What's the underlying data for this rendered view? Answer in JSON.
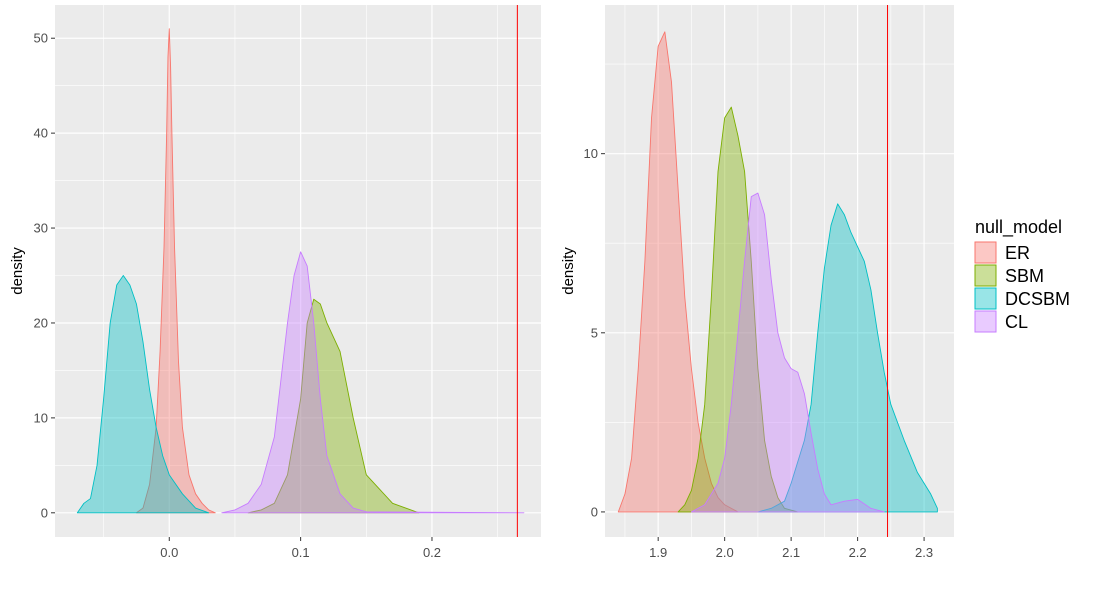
{
  "legend": {
    "title": "null_model",
    "entries": [
      {
        "name": "ER",
        "color": "#F8766D"
      },
      {
        "name": "SBM",
        "color": "#7CAE00"
      },
      {
        "name": "DCSBM",
        "color": "#00BFC4"
      },
      {
        "name": "CL",
        "color": "#C77CFF"
      }
    ]
  },
  "chart_data": [
    {
      "type": "area",
      "ylabel": "density",
      "xlabel": "",
      "xlim": [
        -0.087,
        0.283
      ],
      "ylim": [
        -2.55,
        53.5
      ],
      "xticks": [
        0.0,
        0.1,
        0.2
      ],
      "xtick_labels": [
        "0.0",
        "0.1",
        "0.2"
      ],
      "yticks": [
        0,
        10,
        20,
        30,
        40,
        50
      ],
      "ytick_labels": [
        "0",
        "10",
        "20",
        "30",
        "40",
        "50"
      ],
      "grid": true,
      "vline": {
        "x": 0.265,
        "color": "#ff0000"
      },
      "series": [
        {
          "name": "ER",
          "color": "#F8766D",
          "x": [
            -0.025,
            -0.02,
            -0.015,
            -0.01,
            -0.007,
            -0.004,
            -0.002,
            -0.001,
            0.0,
            0.001,
            0.002,
            0.004,
            0.007,
            0.01,
            0.015,
            0.02,
            0.025,
            0.03,
            0.035
          ],
          "y": [
            0,
            0.5,
            3,
            9,
            17,
            28,
            40,
            48,
            51,
            47,
            40,
            28,
            16,
            9,
            4,
            2,
            1,
            0.3,
            0
          ]
        },
        {
          "name": "SBM",
          "color": "#7CAE00",
          "x": [
            0.06,
            0.07,
            0.08,
            0.09,
            0.1,
            0.105,
            0.11,
            0.115,
            0.12,
            0.13,
            0.14,
            0.15,
            0.16,
            0.17,
            0.18,
            0.19
          ],
          "y": [
            0,
            0.3,
            1,
            4,
            12,
            20,
            22.5,
            22,
            20,
            17,
            10,
            4,
            2.5,
            1,
            0.5,
            0
          ]
        },
        {
          "name": "DCSBM",
          "color": "#00BFC4",
          "x": [
            -0.07,
            -0.065,
            -0.06,
            -0.055,
            -0.05,
            -0.045,
            -0.04,
            -0.035,
            -0.03,
            -0.025,
            -0.02,
            -0.015,
            -0.01,
            -0.005,
            0.0,
            0.01,
            0.02,
            0.03
          ],
          "y": [
            0,
            1,
            1.5,
            5,
            12,
            20,
            24,
            25,
            24,
            22,
            18,
            13,
            9,
            6,
            4,
            2,
            0.5,
            0
          ]
        },
        {
          "name": "CL",
          "color": "#C77CFF",
          "x": [
            0.04,
            0.05,
            0.06,
            0.07,
            0.08,
            0.09,
            0.095,
            0.1,
            0.105,
            0.11,
            0.115,
            0.12,
            0.13,
            0.14,
            0.15,
            0.27
          ],
          "y": [
            0,
            0.3,
            1,
            3,
            8,
            20,
            25,
            27.5,
            26,
            20,
            12,
            6,
            2,
            0.5,
            0.1,
            0
          ]
        }
      ]
    },
    {
      "type": "area",
      "ylabel": "density",
      "xlabel": "",
      "xlim": [
        1.82,
        2.345
      ],
      "ylim": [
        -0.7,
        14.15
      ],
      "xticks": [
        1.9,
        2.0,
        2.1,
        2.2,
        2.3
      ],
      "xtick_labels": [
        "1.9",
        "2.0",
        "2.1",
        "2.2",
        "2.3"
      ],
      "yticks": [
        0,
        5,
        10
      ],
      "ytick_labels": [
        "0",
        "5",
        "10"
      ],
      "grid": true,
      "vline": {
        "x": 2.245,
        "color": "#ff0000"
      },
      "series": [
        {
          "name": "ER",
          "color": "#F8766D",
          "x": [
            1.84,
            1.85,
            1.86,
            1.87,
            1.88,
            1.89,
            1.9,
            1.91,
            1.92,
            1.93,
            1.94,
            1.95,
            1.96,
            1.97,
            1.98,
            1.99,
            2.0,
            2.02
          ],
          "y": [
            0,
            0.5,
            1.5,
            4,
            7,
            11,
            13,
            13.4,
            12,
            9,
            6,
            4,
            2.5,
            1.5,
            0.8,
            0.4,
            0.2,
            0
          ]
        },
        {
          "name": "SBM",
          "color": "#7CAE00",
          "x": [
            1.93,
            1.94,
            1.95,
            1.96,
            1.97,
            1.98,
            1.99,
            2.0,
            2.01,
            2.02,
            2.03,
            2.04,
            2.05,
            2.06,
            2.07,
            2.08,
            2.09,
            2.11
          ],
          "y": [
            0,
            0.2,
            0.6,
            1.5,
            3,
            6,
            9.5,
            11,
            11.3,
            10.5,
            9.5,
            7,
            4,
            2,
            1,
            0.4,
            0.1,
            0
          ]
        },
        {
          "name": "DCSBM",
          "color": "#00BFC4",
          "x": [
            2.05,
            2.07,
            2.09,
            2.1,
            2.11,
            2.12,
            2.13,
            2.14,
            2.15,
            2.16,
            2.17,
            2.18,
            2.19,
            2.2,
            2.21,
            2.22,
            2.23,
            2.24,
            2.25,
            2.27,
            2.29,
            2.31,
            2.32
          ],
          "y": [
            0,
            0.1,
            0.3,
            0.8,
            1.4,
            2,
            3,
            5,
            6.8,
            8,
            8.6,
            8.3,
            7.8,
            7.4,
            7,
            6.2,
            5,
            3.9,
            3,
            2,
            1.1,
            0.5,
            0.1
          ]
        },
        {
          "name": "CL",
          "color": "#C77CFF",
          "x": [
            1.95,
            1.97,
            1.99,
            2.0,
            2.01,
            2.02,
            2.03,
            2.04,
            2.05,
            2.06,
            2.07,
            2.08,
            2.09,
            2.1,
            2.11,
            2.12,
            2.13,
            2.14,
            2.15,
            2.16,
            2.18,
            2.2,
            2.22,
            2.24
          ],
          "y": [
            0,
            0.2,
            0.8,
            1.5,
            3,
            5,
            7,
            8.8,
            8.9,
            8.3,
            6.5,
            5,
            4.3,
            4,
            3.9,
            3.3,
            2.2,
            1.2,
            0.5,
            0.2,
            0.3,
            0.35,
            0.1,
            0
          ]
        }
      ]
    }
  ]
}
